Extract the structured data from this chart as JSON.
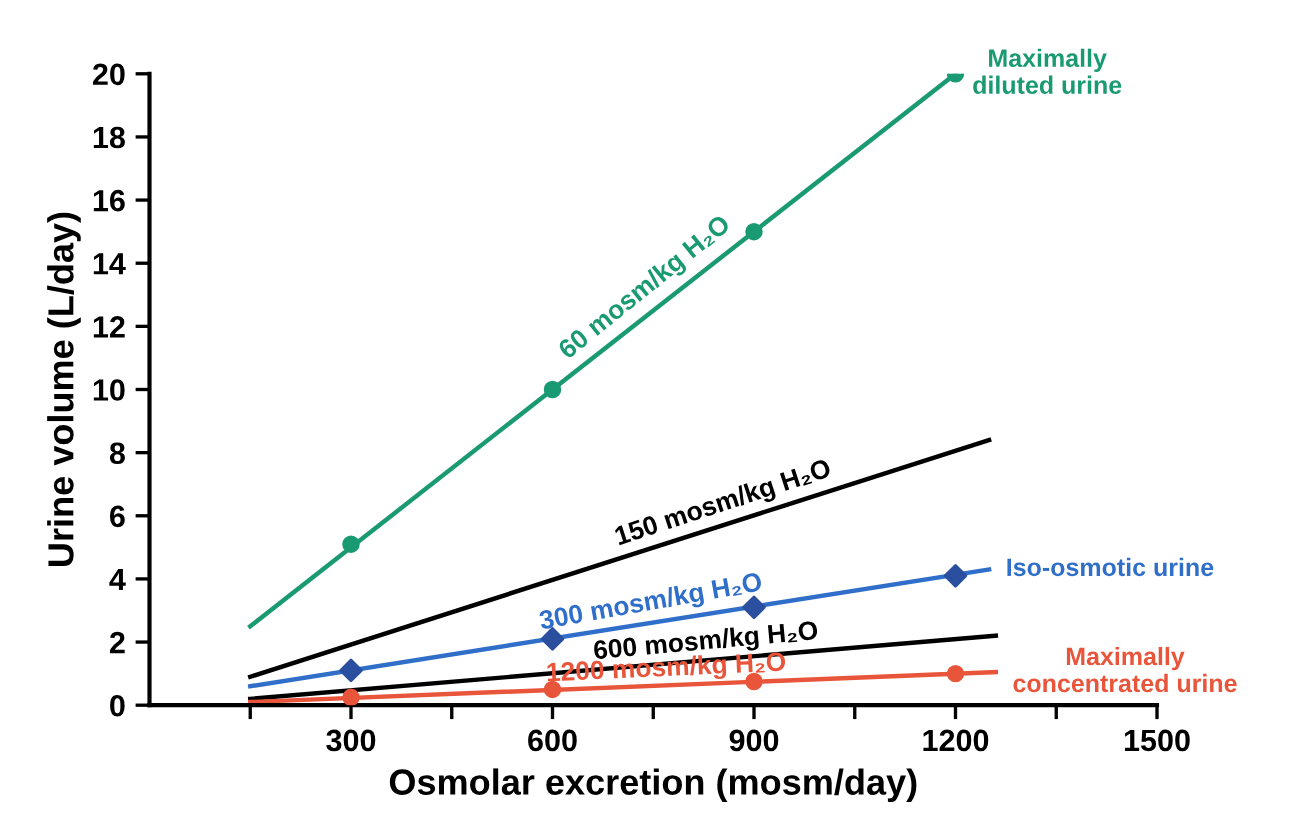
{
  "chart_data": {
    "type": "line",
    "xlabel": "Osmolar excretion (mosm/day)",
    "ylabel": "Urine volume (L/day)",
    "xlim": [
      0,
      1500
    ],
    "ylim": [
      0,
      20
    ],
    "xticks": [
      {
        "value": 150,
        "label": null
      },
      300,
      {
        "value": 450,
        "label": null
      },
      600,
      {
        "value": 750,
        "label": null
      },
      900,
      {
        "value": 1050,
        "label": null
      },
      1200,
      {
        "value": 1350,
        "label": null
      },
      1500
    ],
    "yticks": [
      0,
      2,
      4,
      6,
      8,
      10,
      12,
      14,
      16,
      18,
      20
    ],
    "grid": false,
    "legend": false,
    "series": [
      {
        "name": "Maximally\ndiluted urine",
        "color": "#1a9a72",
        "x": [
          150,
          1200
        ],
        "values": [
          2.5,
          20
        ]
      },
      {
        "type": "scatter",
        "color": "#1a9a72",
        "marker": "circle",
        "x": [
          300,
          600,
          900,
          1200
        ],
        "values": [
          5.1,
          10,
          15,
          20
        ]
      },
      {
        "color": "#000000",
        "x": [
          150,
          1250
        ],
        "values": [
          0.9,
          8.4
        ]
      },
      {
        "name": "Iso-osmotic urine",
        "color": "#2f6fc9",
        "x": [
          150,
          1250
        ],
        "values": [
          0.6,
          4.3
        ]
      },
      {
        "type": "scatter",
        "color": "#2a4f9f",
        "marker": "diamond",
        "x": [
          300,
          600,
          900,
          1200
        ],
        "values": [
          1.1,
          2.1,
          3.1,
          4.1
        ]
      },
      {
        "color": "#000000",
        "x": [
          150,
          1260
        ],
        "values": [
          0.2,
          2.2
        ]
      },
      {
        "name": "Maximally\nconcentrated urine",
        "color": "#e8553a",
        "x": [
          150,
          1260
        ],
        "values": [
          0.1,
          1.05
        ]
      },
      {
        "type": "scatter",
        "color": "#e8553a",
        "marker": "circle",
        "x": [
          300,
          600,
          900,
          1200
        ],
        "values": [
          0.25,
          0.5,
          0.75,
          1.0
        ]
      }
    ],
    "annotations": [
      {
        "text": "60 mosm/kg H₂O",
        "x": 750,
        "y": 12.9
      },
      {
        "text": "150 mosm/kg H₂O",
        "x": 860,
        "y": 6.0
      },
      {
        "text": "300 mosm/kg H₂O",
        "x": 750,
        "y": 2.85
      },
      {
        "text": "600 mosm/kg H₂O",
        "x": 830,
        "y": 1.6
      },
      {
        "text": "1200 mosm/kg H₂O",
        "x": 770,
        "y": 0.75
      }
    ]
  }
}
